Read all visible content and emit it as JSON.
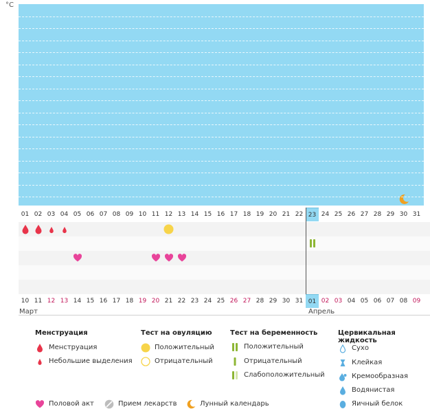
{
  "chart": {
    "unit": "°C",
    "moon_icon": "moon-icon"
  },
  "cycle_days": [
    "01",
    "02",
    "03",
    "04",
    "05",
    "06",
    "07",
    "08",
    "09",
    "10",
    "11",
    "12",
    "13",
    "14",
    "15",
    "16",
    "17",
    "18",
    "19",
    "20",
    "21",
    "22",
    "23",
    "24",
    "25",
    "26",
    "27",
    "28",
    "29",
    "30",
    "31"
  ],
  "current_cycle_day": "23",
  "dates": [
    "10",
    "11",
    "12",
    "13",
    "14",
    "15",
    "16",
    "17",
    "18",
    "19",
    "20",
    "21",
    "22",
    "23",
    "24",
    "25",
    "26",
    "27",
    "28",
    "29",
    "30",
    "31",
    "01",
    "02",
    "03",
    "04",
    "05",
    "06",
    "07",
    "08",
    "09"
  ],
  "weekend_dates_index": [
    2,
    3,
    9,
    10,
    16,
    17,
    23,
    24,
    30
  ],
  "current_date_index": 22,
  "months": {
    "first": "Март",
    "second": "Апрель"
  },
  "events": {
    "menstruation_days": [
      "01",
      "02"
    ],
    "light_bleeding_days": [
      "03",
      "04"
    ],
    "ovulation_positive_day": "12",
    "pregnancy_positive_day": "23",
    "intercourse_days": [
      "05",
      "11",
      "12",
      "13"
    ]
  },
  "legend": {
    "menstruation": {
      "title": "Менструация",
      "items": [
        "Менструация",
        "Небольшие выделения"
      ]
    },
    "ovulation_test": {
      "title": "Тест на овуляцию",
      "items": [
        "Положительный",
        "Отрицательный"
      ]
    },
    "pregnancy_test": {
      "title": "Тест на беременность",
      "items": [
        "Положительный",
        "Отрицательный",
        "Слабоположительный"
      ]
    },
    "cervical_fluid": {
      "title": "Цервикальная жидкость",
      "items": [
        "Сухо",
        "Клейкая",
        "Кремообразная",
        "Водянистая",
        "Яичный белок"
      ]
    },
    "other": [
      "Половой акт",
      "Прием лекарств",
      "Лунный календарь"
    ]
  },
  "colors": {
    "chart_bg": "#93d9f3",
    "menstruation": "#e8344a",
    "ovulation": "#f7d44a",
    "pregnancy": "#8db634",
    "heart": "#e8449a",
    "fluid": "#5aaee0",
    "moon": "#f0a020",
    "weekend": "#c2185b"
  }
}
